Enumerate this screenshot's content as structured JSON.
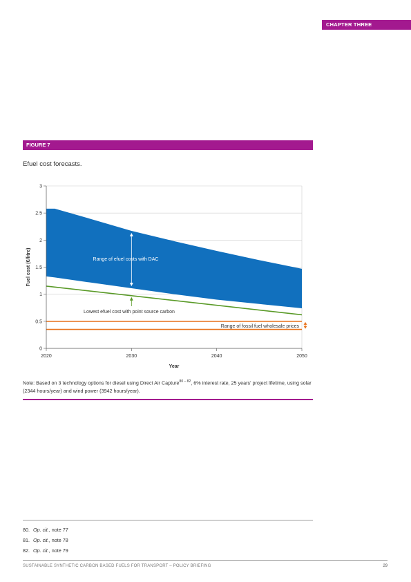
{
  "header": {
    "chapter": "CHAPTER THREE"
  },
  "figure": {
    "label": "FIGURE 7",
    "title": "Efuel cost forecasts.",
    "note_prefix": "Note: Based on 3 technology options for diesel using Direct Air Capture",
    "note_sup": "80 – 82",
    "note_suffix": ", 6% interest rate, 25 years' project lifetime, using solar (2344 hours/year) and wind power (3942 hours/year)."
  },
  "chart_data": {
    "type": "area",
    "xlabel": "Year",
    "ylabel": "Fuel cost (€/litre)",
    "xlim": [
      2020,
      2050
    ],
    "ylim": [
      0,
      3
    ],
    "x_ticks": [
      "2020",
      "2030",
      "2040",
      "2050"
    ],
    "y_ticks": [
      "0",
      "0.5",
      "1",
      "1.5",
      "2",
      "2.5",
      "3"
    ],
    "grid": "horizontal",
    "colors": {
      "dac_band": "#1170be",
      "point_source": "#5a9a28",
      "fossil": "#e8721c",
      "grid": "#cccccc"
    },
    "dac_range": {
      "x": [
        2020,
        2021,
        2025,
        2030,
        2035,
        2040,
        2045,
        2050
      ],
      "upper": [
        2.58,
        2.58,
        2.4,
        2.17,
        1.98,
        1.8,
        1.63,
        1.47
      ],
      "lower": [
        1.33,
        1.31,
        1.22,
        1.11,
        1.0,
        0.9,
        0.82,
        0.74
      ]
    },
    "point_source": {
      "x": [
        2020,
        2050
      ],
      "y": [
        1.15,
        0.62
      ]
    },
    "fossil_range": {
      "x": [
        2020,
        2050
      ],
      "upper": 0.5,
      "lower": 0.35
    },
    "annotations": {
      "dac": "Range of efuel costs with DAC",
      "point_source": "Lowest efuel cost with point source carbon",
      "fossil": "Range of fossil fuel wholesale prices"
    }
  },
  "footnotes": [
    {
      "num": "80.",
      "ref": "Op. cit.",
      "text": ", note 77"
    },
    {
      "num": "81.",
      "ref": "Op. cit.",
      "text": ", note 78"
    },
    {
      "num": "82.",
      "ref": "Op. cit.",
      "text": ", note 79"
    }
  ],
  "footer": {
    "title": "SUSTAINABLE SYNTHETIC CARBON BASED FUELS FOR TRANSPORT – POLICY BRIEFING",
    "page": "29"
  }
}
